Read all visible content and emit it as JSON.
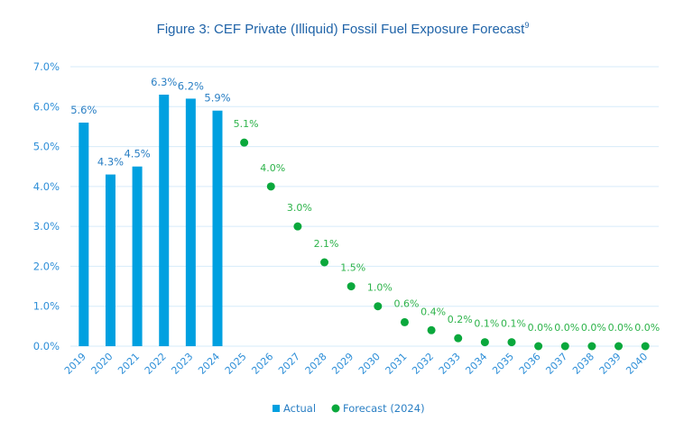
{
  "chart_data": {
    "type": "bar",
    "title": "Figure 3: CEF Private (Illiquid) Fossil Fuel Exposure Forecast",
    "title_superscript": "9",
    "xlabel": "",
    "ylabel": "",
    "ylim": [
      0,
      7
    ],
    "yticks": [
      "0.0%",
      "1.0%",
      "2.0%",
      "3.0%",
      "4.0%",
      "5.0%",
      "6.0%",
      "7.0%"
    ],
    "grid": true,
    "legend_position": "bottom",
    "categories": [
      "2019",
      "2020",
      "2021",
      "2022",
      "2023",
      "2024",
      "2025",
      "2026",
      "2027",
      "2028",
      "2029",
      "2030",
      "2031",
      "2032",
      "2033",
      "2034",
      "2035",
      "2036",
      "2037",
      "2038",
      "2039",
      "2040"
    ],
    "series": [
      {
        "name": "Actual",
        "type": "bar",
        "color": "#00a0e0",
        "label_color": "#2a7fc4",
        "values": [
          5.6,
          4.3,
          4.5,
          6.3,
          6.2,
          5.9,
          null,
          null,
          null,
          null,
          null,
          null,
          null,
          null,
          null,
          null,
          null,
          null,
          null,
          null,
          null,
          null
        ],
        "labels": [
          "5.6%",
          "4.3%",
          "4.5%",
          "6.3%",
          "6.2%",
          "5.9%",
          null,
          null,
          null,
          null,
          null,
          null,
          null,
          null,
          null,
          null,
          null,
          null,
          null,
          null,
          null,
          null
        ]
      },
      {
        "name": "Forecast (2024)",
        "type": "scatter",
        "color": "#0aa83c",
        "label_color": "#2db34a",
        "values": [
          null,
          null,
          null,
          null,
          null,
          null,
          5.1,
          4.0,
          3.0,
          2.1,
          1.5,
          1.0,
          0.6,
          0.4,
          0.2,
          0.1,
          0.1,
          0.0,
          0.0,
          0.0,
          0.0,
          0.0
        ],
        "labels": [
          null,
          null,
          null,
          null,
          null,
          null,
          "5.1%",
          "4.0%",
          "3.0%",
          "2.1%",
          "1.5%",
          "1.0%",
          "0.6%",
          "0.4%",
          "0.2%",
          "0.1%",
          "0.1%",
          "0.0%",
          "0.0%",
          "0.0%",
          "0.0%",
          "0.0%"
        ]
      }
    ],
    "gridline_color": "#d6ebfa",
    "axis_text_color": "#2e8fd8"
  }
}
